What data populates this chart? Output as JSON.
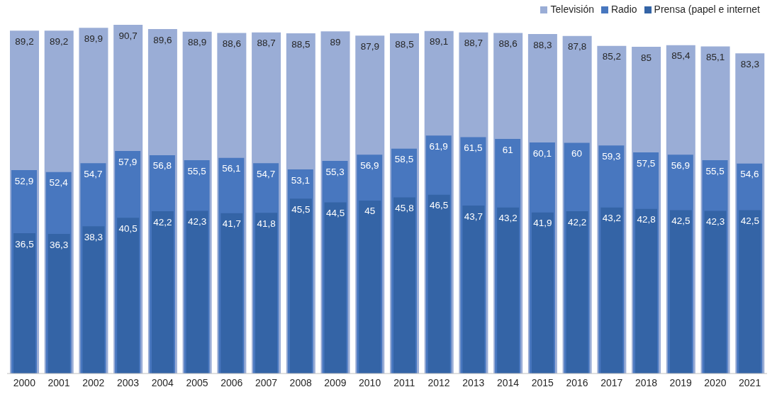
{
  "chart_data": {
    "type": "bar",
    "categories": [
      "2000",
      "2001",
      "2002",
      "2003",
      "2004",
      "2005",
      "2006",
      "2007",
      "2008",
      "2009",
      "2010",
      "2011",
      "2012",
      "2013",
      "2014",
      "2015",
      "2016",
      "2017",
      "2018",
      "2019",
      "2020",
      "2021"
    ],
    "series": [
      {
        "name": "Televisión",
        "color": "#9aadd6",
        "values": [
          89.2,
          89.2,
          89.9,
          90.7,
          89.6,
          88.9,
          88.6,
          88.7,
          88.5,
          89,
          87.9,
          88.5,
          89.1,
          88.7,
          88.6,
          88.3,
          87.8,
          85.2,
          85,
          85.4,
          85.1,
          83.3
        ],
        "value_labels": [
          "89,2",
          "89,2",
          "89,9",
          "90,7",
          "89,6",
          "88,9",
          "88,6",
          "88,7",
          "88,5",
          "89",
          "87,9",
          "88,5",
          "89,1",
          "88,7",
          "88,6",
          "88,3",
          "87,8",
          "85,2",
          "85",
          "85,4",
          "85,1",
          "83,3"
        ]
      },
      {
        "name": "Radio",
        "color": "#4877bf",
        "values": [
          52.9,
          52.4,
          54.7,
          57.9,
          56.8,
          55.5,
          56.1,
          54.7,
          53.1,
          55.3,
          56.9,
          58.5,
          61.9,
          61.5,
          61,
          60.1,
          60,
          59.3,
          57.5,
          56.9,
          55.5,
          54.6
        ],
        "value_labels": [
          "52,9",
          "52,4",
          "54,7",
          "57,9",
          "56,8",
          "55,5",
          "56,1",
          "54,7",
          "53,1",
          "55,3",
          "56,9",
          "58,5",
          "61,9",
          "61,5",
          "61",
          "60,1",
          "60",
          "59,3",
          "57,5",
          "56,9",
          "55,5",
          "54,6"
        ]
      },
      {
        "name": "Prensa (papel e internet",
        "color": "#3464a6",
        "values": [
          36.5,
          36.3,
          38.3,
          40.5,
          42.2,
          42.3,
          41.7,
          41.8,
          45.5,
          44.5,
          45,
          45.8,
          46.5,
          43.7,
          43.2,
          41.9,
          42.2,
          43.2,
          42.8,
          42.5,
          42.3,
          42.5
        ],
        "value_labels": [
          "36,5",
          "36,3",
          "38,3",
          "40,5",
          "42,2",
          "42,3",
          "41,7",
          "41,8",
          "45,5",
          "44,5",
          "45",
          "45,8",
          "46,5",
          "43,7",
          "43,2",
          "41,9",
          "42,2",
          "43,2",
          "42,8",
          "42,5",
          "42,3",
          "42,5"
        ]
      }
    ],
    "legend": "top right",
    "grid": false
  }
}
